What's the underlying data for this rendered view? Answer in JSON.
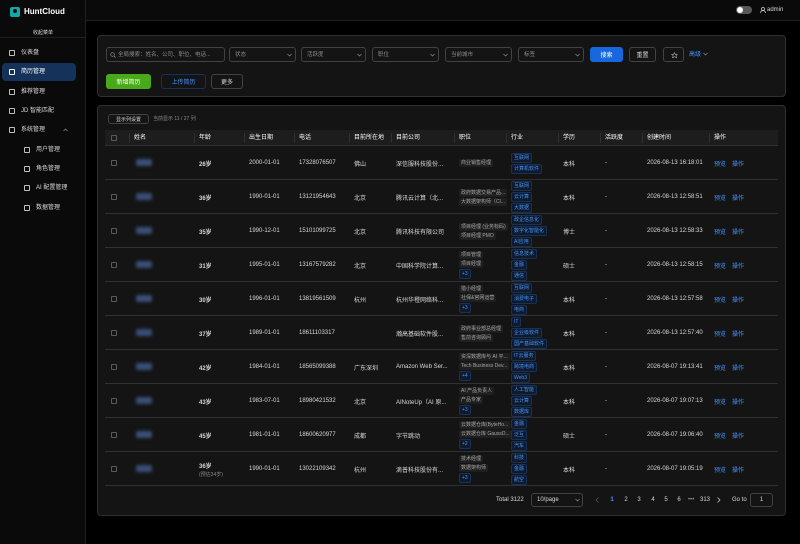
{
  "sidebar": {
    "brand": "HuntCloud",
    "collapse": "收起菜单",
    "menu": [
      "仪表盘",
      "简历管理",
      "推荐管理",
      "JD 智能匹配",
      "系统管理"
    ],
    "submenu": [
      "用户管理",
      "角色管理",
      "AI 配置管理",
      "数据管理"
    ]
  },
  "topbar": {
    "user": "admin"
  },
  "filters": {
    "search_placeholder": "全局搜索：姓名、公司、职位、电话...",
    "selects": [
      "状态",
      "活跃度",
      "职位",
      "当前城市",
      "标签"
    ],
    "search": "搜索",
    "reset": "重置",
    "advanced": "高级",
    "add": "新增简历",
    "upload": "上传简历",
    "more": "更多"
  },
  "table": {
    "column_settings": "显示列设置",
    "column_count": "当前显示 11 / 27 列",
    "columns": [
      "姓名",
      "年龄",
      "出生日期",
      "电话",
      "目前所在地",
      "目前公司",
      "职位",
      "行业",
      "学历",
      "活跃度",
      "创建时间",
      "操作"
    ],
    "actions": [
      "预览",
      "操作"
    ],
    "rows": [
      {
        "age": "26岁",
        "birth": "2000-01-01",
        "phone": "17328076507",
        "city": "佛山",
        "company": "深信服科技股份...",
        "positions": [
          "商业销售经理"
        ],
        "industries": [
          "互联网",
          "计算机软件"
        ],
        "education": "本科",
        "activity": "-",
        "created": "2026-08-13 16:18:01"
      },
      {
        "age": "36岁",
        "birth": "1990-01-01",
        "phone": "13121954643",
        "city": "北京",
        "company": "腾讯云计算（北...",
        "positions": [
          "政府数据交易产品...",
          "大数据架构师（Cl..."
        ],
        "industries": [
          "互联网",
          "云计算",
          "大数据"
        ],
        "education": "本科",
        "activity": "-",
        "created": "2026-08-13 12:58:51"
      },
      {
        "age": "35岁",
        "birth": "1990-12-01",
        "phone": "15101099725",
        "city": "北京",
        "company": "腾讯科技有限公司",
        "positions": [
          "项目经理 (业务标码)",
          "项目经理 PMO"
        ],
        "industries": [
          "政企信息化",
          "数字化智能化",
          "AI应用"
        ],
        "education": "博士",
        "activity": "-",
        "created": "2026-08-13 12:58:33"
      },
      {
        "age": "31岁",
        "birth": "1995-01-01",
        "phone": "13167579282",
        "city": "北京",
        "company": "中国科学院计算...",
        "positions": [
          "项目管理",
          "项目经理"
        ],
        "positions_more": "+3",
        "industries": [
          "信息技术",
          "金融",
          "通信"
        ],
        "education": "硕士",
        "activity": "-",
        "created": "2026-08-13 12:58:15"
      },
      {
        "age": "30岁",
        "birth": "1996-01-01",
        "phone": "13819561509",
        "city": "杭州",
        "company": "杭州华橙网络科...",
        "positions": [
          "猎小经理",
          "社保&官网运营"
        ],
        "positions_more": "+3",
        "industries": [
          "互联网",
          "消费电子",
          "电商"
        ],
        "education": "本科",
        "activity": "-",
        "created": "2026-08-13 12:57:58"
      },
      {
        "age": "37岁",
        "birth": "1989-01-01",
        "phone": "18611103317",
        "city": "",
        "company": "瀚高基础软件股...",
        "positions": [
          "政府事业部总经理",
          "售前咨询顾问"
        ],
        "industries": [
          "IT",
          "企业级软件",
          "国产基础软件"
        ],
        "education": "本科",
        "activity": "-",
        "created": "2026-08-13 12:57:40"
      },
      {
        "age": "42岁",
        "birth": "1984-01-01",
        "phone": "18565099388",
        "city": "广东深圳",
        "company": "Amazon Web Ser...",
        "positions": [
          "资深数据库与 AI 平...",
          "Tech Business Dev..."
        ],
        "positions_more": "+4",
        "industries": [
          "IT云服务",
          "跨境电商",
          "Web3"
        ],
        "education": "本科",
        "activity": "-",
        "created": "2026-08-07 19:13:41"
      },
      {
        "age": "43岁",
        "birth": "1983-07-01",
        "phone": "18980421532",
        "city": "北京",
        "company": "AINoteUp（AI 原...",
        "positions": [
          "AI 产品负责人",
          "产品专家"
        ],
        "positions_more": "+3",
        "industries": [
          "人工智能",
          "云计算",
          "数据库"
        ],
        "education": "本科",
        "activity": "-",
        "created": "2026-08-07 19:07:13"
      },
      {
        "age": "45岁",
        "birth": "1981-01-01",
        "phone": "18600620977",
        "city": "成都",
        "company": "字节跳动",
        "positions": [
          "云数据仓库(ByteHo...",
          "云数据仓库 GaussD..."
        ],
        "positions_more": "+2",
        "industries": [
          "金融",
          "泛互",
          "汽车"
        ],
        "education": "硕士",
        "activity": "-",
        "created": "2026-08-07 19:06:40"
      },
      {
        "age": "36岁",
        "age_note": "(预估34岁)",
        "birth": "1990-01-01",
        "phone": "13022109342",
        "city": "杭州",
        "company": "滴普科技股份有...",
        "positions": [
          "技术经理",
          "数据架构师"
        ],
        "positions_more": "+3",
        "industries": [
          "科技",
          "金融",
          "航空"
        ],
        "education": "本科",
        "activity": "-",
        "created": "2026-08-07 19:05:19"
      }
    ]
  },
  "pagination": {
    "total": "Total 3122",
    "page_size": "10/page",
    "pages": [
      "1",
      "2",
      "3",
      "4",
      "5",
      "6"
    ],
    "ellipsis": "•••",
    "last": "313",
    "goto": "Go to",
    "goto_value": "1"
  }
}
